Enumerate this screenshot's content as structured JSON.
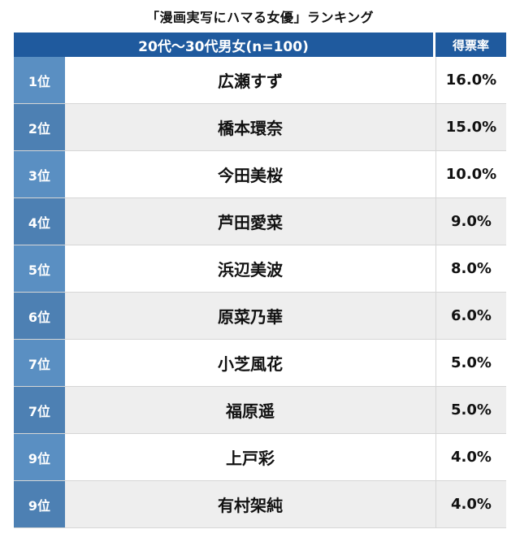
{
  "title": "「漫画実写にハマる女優」ランキング",
  "table": {
    "header_group": "20代〜30代男女(n=100)",
    "header_rate": "得票率",
    "rows": [
      {
        "rank": "1位",
        "name": "広瀬すず",
        "rate": "16.0%"
      },
      {
        "rank": "2位",
        "name": "橋本環奈",
        "rate": "15.0%"
      },
      {
        "rank": "3位",
        "name": "今田美桜",
        "rate": "10.0%"
      },
      {
        "rank": "4位",
        "name": "芦田愛菜",
        "rate": "9.0%"
      },
      {
        "rank": "5位",
        "name": "浜辺美波",
        "rate": "8.0%"
      },
      {
        "rank": "6位",
        "name": "原菜乃華",
        "rate": "6.0%"
      },
      {
        "rank": "7位",
        "name": "小芝風花",
        "rate": "5.0%"
      },
      {
        "rank": "7位",
        "name": "福原遥",
        "rate": "5.0%"
      },
      {
        "rank": "9位",
        "name": "上戸彩",
        "rate": "4.0%"
      },
      {
        "rank": "9位",
        "name": "有村架純",
        "rate": "4.0%"
      }
    ]
  },
  "colors": {
    "header_bg": "#1f5a9e",
    "rank_bg": "#5a8fc2",
    "alt_row_bg": "#eeeeee"
  }
}
